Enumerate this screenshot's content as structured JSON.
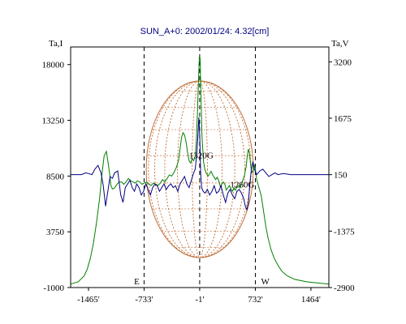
{
  "chart_data": {
    "type": "line",
    "title": "SUN_A+0: 2002/01/24: 4.32[cm]",
    "ylabel_left": "Ta,I",
    "ylabel_right": "Ta,V",
    "xlim": [
      -1700,
      1700
    ],
    "ylim_left": [
      -1000,
      19500
    ],
    "ylim_right": [
      -2900,
      3600
    ],
    "x_ticks": [
      -1465,
      -733,
      -1,
      732,
      1464
    ],
    "x_tick_labels": [
      "-1465'",
      "-733'",
      "-1'",
      "732'",
      "1464'"
    ],
    "y_left_ticks": [
      18000,
      13250,
      8500,
      3750,
      -1000
    ],
    "y_left_tick_labels": [
      "18000",
      "13250",
      "8500",
      "3750",
      "-1000"
    ],
    "y_right_ticks": [
      3200,
      1675,
      150,
      -1375,
      -2900
    ],
    "y_right_tick_labels": [
      "3200",
      "1675",
      "150",
      "-1375",
      "-2900"
    ],
    "grid": false,
    "markers": [
      {
        "x": -733,
        "label": "E"
      },
      {
        "x": -1,
        "label": ""
      },
      {
        "x": 732,
        "label": "W"
      }
    ],
    "annotations": [
      {
        "text": "1320G",
        "x": 20,
        "y": 10000,
        "axis": "left"
      },
      {
        "text": "1260G",
        "x": 560,
        "y": -200,
        "axis": "right"
      }
    ],
    "disk": {
      "center_x": 0,
      "radius": 705,
      "color": "#c0703a"
    },
    "series": [
      {
        "color": "#008000",
        "axis": "left",
        "points": [
          [
            -1700,
            -700
          ],
          [
            -1600,
            -500
          ],
          [
            -1520,
            0
          ],
          [
            -1480,
            600
          ],
          [
            -1440,
            1500
          ],
          [
            -1400,
            2800
          ],
          [
            -1360,
            4500
          ],
          [
            -1320,
            6500
          ],
          [
            -1290,
            8500
          ],
          [
            -1260,
            10200
          ],
          [
            -1230,
            10600
          ],
          [
            -1210,
            9800
          ],
          [
            -1185,
            8600
          ],
          [
            -1170,
            7700
          ],
          [
            -1150,
            7400
          ],
          [
            -1120,
            7500
          ],
          [
            -1090,
            7800
          ],
          [
            -1060,
            8000
          ],
          [
            -1030,
            8000
          ],
          [
            -1000,
            7800
          ],
          [
            -970,
            8000
          ],
          [
            -940,
            8300
          ],
          [
            -910,
            8100
          ],
          [
            -880,
            8000
          ],
          [
            -850,
            7900
          ],
          [
            -820,
            8100
          ],
          [
            -790,
            8000
          ],
          [
            -760,
            7800
          ],
          [
            -730,
            7900
          ],
          [
            -700,
            8000
          ],
          [
            -670,
            7800
          ],
          [
            -640,
            7700
          ],
          [
            -610,
            7900
          ],
          [
            -580,
            7800
          ],
          [
            -550,
            7700
          ],
          [
            -520,
            7900
          ],
          [
            -490,
            8200
          ],
          [
            -460,
            8000
          ],
          [
            -430,
            8300
          ],
          [
            -400,
            8600
          ],
          [
            -370,
            8500
          ],
          [
            -340,
            8800
          ],
          [
            -310,
            9200
          ],
          [
            -280,
            9800
          ],
          [
            -260,
            10800
          ],
          [
            -240,
            11800
          ],
          [
            -220,
            12200
          ],
          [
            -200,
            12000
          ],
          [
            -180,
            11400
          ],
          [
            -160,
            10500
          ],
          [
            -140,
            9800
          ],
          [
            -120,
            9600
          ],
          [
            -100,
            10000
          ],
          [
            -80,
            9800
          ],
          [
            -60,
            10200
          ],
          [
            -45,
            11500
          ],
          [
            -30,
            14000
          ],
          [
            -15,
            17000
          ],
          [
            -5,
            18700
          ],
          [
            5,
            18500
          ],
          [
            15,
            15500
          ],
          [
            30,
            11800
          ],
          [
            50,
            9700
          ],
          [
            70,
            9000
          ],
          [
            90,
            8700
          ],
          [
            110,
            8500
          ],
          [
            130,
            8700
          ],
          [
            150,
            8900
          ],
          [
            170,
            8600
          ],
          [
            190,
            8400
          ],
          [
            210,
            8200
          ],
          [
            230,
            8400
          ],
          [
            250,
            8100
          ],
          [
            270,
            7600
          ],
          [
            290,
            7800
          ],
          [
            310,
            8000
          ],
          [
            330,
            7800
          ],
          [
            350,
            7300
          ],
          [
            370,
            7500
          ],
          [
            390,
            7700
          ],
          [
            410,
            7400
          ],
          [
            430,
            7200
          ],
          [
            450,
            7500
          ],
          [
            470,
            7300
          ],
          [
            490,
            7600
          ],
          [
            510,
            7700
          ],
          [
            530,
            7500
          ],
          [
            550,
            7800
          ],
          [
            570,
            8200
          ],
          [
            590,
            8600
          ],
          [
            610,
            9300
          ],
          [
            625,
            10200
          ],
          [
            640,
            10800
          ],
          [
            655,
            10400
          ],
          [
            670,
            9400
          ],
          [
            685,
            8800
          ],
          [
            700,
            8900
          ],
          [
            715,
            9500
          ],
          [
            730,
            9200
          ],
          [
            750,
            8200
          ],
          [
            780,
            7500
          ],
          [
            810,
            6800
          ],
          [
            840,
            5500
          ],
          [
            870,
            4200
          ],
          [
            900,
            3200
          ],
          [
            940,
            2200
          ],
          [
            980,
            1500
          ],
          [
            1030,
            900
          ],
          [
            1080,
            400
          ],
          [
            1150,
            0
          ],
          [
            1250,
            -300
          ],
          [
            1400,
            -500
          ],
          [
            1700,
            -700
          ]
        ]
      },
      {
        "color": "#000080",
        "axis": "right",
        "points": [
          [
            -1700,
            150
          ],
          [
            -1560,
            150
          ],
          [
            -1500,
            200
          ],
          [
            -1460,
            180
          ],
          [
            -1420,
            150
          ],
          [
            -1380,
            300
          ],
          [
            -1340,
            400
          ],
          [
            -1300,
            200
          ],
          [
            -1270,
            -150
          ],
          [
            -1240,
            -700
          ],
          [
            -1210,
            -300
          ],
          [
            -1180,
            100
          ],
          [
            -1150,
            50
          ],
          [
            -1120,
            200
          ],
          [
            -1080,
            250
          ],
          [
            -1040,
            -400
          ],
          [
            -1010,
            -600
          ],
          [
            -980,
            -200
          ],
          [
            -950,
            -100
          ],
          [
            -920,
            0
          ],
          [
            -890,
            -200
          ],
          [
            -860,
            -300
          ],
          [
            -830,
            -100
          ],
          [
            -800,
            -200
          ],
          [
            -770,
            -400
          ],
          [
            -740,
            -300
          ],
          [
            -710,
            -100
          ],
          [
            -680,
            -250
          ],
          [
            -650,
            -400
          ],
          [
            -620,
            -200
          ],
          [
            -590,
            -100
          ],
          [
            -560,
            -150
          ],
          [
            -530,
            -300
          ],
          [
            -500,
            -200
          ],
          [
            -470,
            -100
          ],
          [
            -440,
            -250
          ],
          [
            -410,
            -150
          ],
          [
            -380,
            -100
          ],
          [
            -350,
            -200
          ],
          [
            -320,
            -150
          ],
          [
            -290,
            -300
          ],
          [
            -260,
            -100
          ],
          [
            -230,
            0
          ],
          [
            -200,
            100
          ],
          [
            -170,
            -100
          ],
          [
            -140,
            -200
          ],
          [
            -110,
            0
          ],
          [
            -80,
            200
          ],
          [
            -60,
            300
          ],
          [
            -40,
            700
          ],
          [
            -25,
            1200
          ],
          [
            -12,
            1700
          ],
          [
            0,
            1200
          ],
          [
            12,
            200
          ],
          [
            25,
            -200
          ],
          [
            45,
            -300
          ],
          [
            70,
            -350
          ],
          [
            100,
            -250
          ],
          [
            130,
            -400
          ],
          [
            160,
            -300
          ],
          [
            190,
            -150
          ],
          [
            220,
            -350
          ],
          [
            250,
            -300
          ],
          [
            280,
            -150
          ],
          [
            310,
            -400
          ],
          [
            340,
            -600
          ],
          [
            370,
            -350
          ],
          [
            400,
            -250
          ],
          [
            430,
            -400
          ],
          [
            460,
            -500
          ],
          [
            490,
            -300
          ],
          [
            520,
            -250
          ],
          [
            550,
            -350
          ],
          [
            580,
            -500
          ],
          [
            600,
            -700
          ],
          [
            620,
            -800
          ],
          [
            640,
            -600
          ],
          [
            660,
            -100
          ],
          [
            680,
            300
          ],
          [
            700,
            500
          ],
          [
            720,
            300
          ],
          [
            750,
            150
          ],
          [
            790,
            250
          ],
          [
            830,
            300
          ],
          [
            870,
            200
          ],
          [
            910,
            100
          ],
          [
            950,
            150
          ],
          [
            990,
            200
          ],
          [
            1030,
            150
          ],
          [
            1100,
            180
          ],
          [
            1200,
            150
          ],
          [
            1400,
            150
          ],
          [
            1700,
            150
          ]
        ]
      }
    ]
  }
}
